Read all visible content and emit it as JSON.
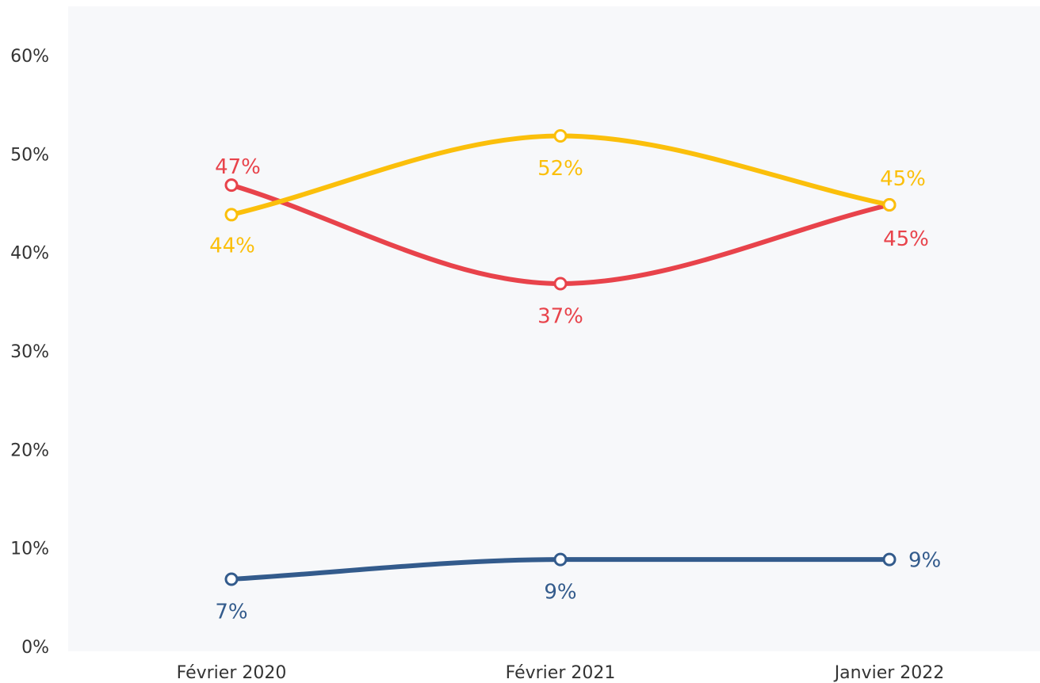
{
  "chart_data": {
    "type": "line",
    "categories": [
      "Février 2020",
      "Février 2021",
      "Janvier 2022"
    ],
    "series": [
      {
        "color": "#e8434b",
        "values": [
          47,
          37,
          45
        ],
        "labels": [
          "47%",
          "37%",
          "45%"
        ]
      },
      {
        "color": "#fbbf0b",
        "values": [
          44,
          52,
          45
        ],
        "labels": [
          "44%",
          "52%",
          "45%"
        ]
      },
      {
        "color": "#335b8c",
        "values": [
          7,
          9,
          9
        ],
        "labels": [
          "7%",
          "9%",
          "9%"
        ]
      }
    ],
    "y_ticks": [
      "0%",
      "10%",
      "20%",
      "30%",
      "40%",
      "50%",
      "60%"
    ],
    "ylim": [
      0,
      60
    ],
    "title": "",
    "xlabel": "",
    "ylabel": "",
    "grid": false,
    "background": "#f7f8fa",
    "smooth": true
  }
}
